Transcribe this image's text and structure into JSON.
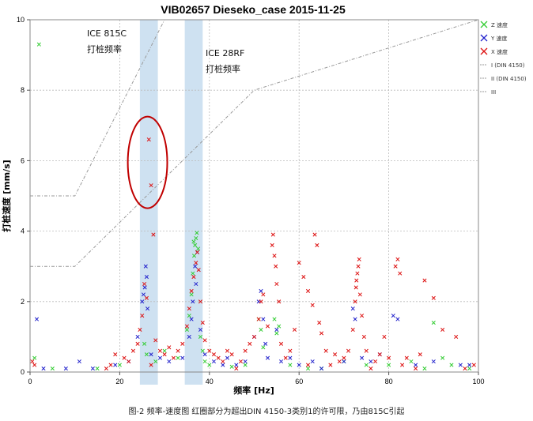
{
  "chart_data": {
    "type": "scatter",
    "title": "VIB02657 Dieseko_case 2015-11-25",
    "xlabel": "频率 [Hz]",
    "ylabel": "打桩速度 [mm/s]",
    "xlim": [
      0,
      100
    ],
    "ylim": [
      0,
      10
    ],
    "xticks": [
      "0",
      "20",
      "40",
      "60",
      "80",
      "100"
    ],
    "yticks": [
      "0",
      "2",
      "4",
      "6",
      "8",
      "10"
    ],
    "grid": true,
    "legend_position": "top-right",
    "colors": {
      "z": "#33cc33",
      "y": "#2222cc",
      "x": "#dd1111",
      "limit": "#999999",
      "band": "#c6dcef",
      "ellipse": "#c00000"
    },
    "series": [
      {
        "name": "Z 速度",
        "points": [
          [
            2,
            9.3
          ],
          [
            25.5,
            0.8
          ],
          [
            26,
            0.5
          ],
          [
            28,
            0.3
          ],
          [
            30,
            0.6
          ],
          [
            33,
            0.4
          ],
          [
            35,
            1.2
          ],
          [
            35.5,
            1.6
          ],
          [
            36,
            2.2
          ],
          [
            36.3,
            2.8
          ],
          [
            36.6,
            3.3
          ],
          [
            36.8,
            3.6
          ],
          [
            37,
            3.8
          ],
          [
            37.2,
            3.95
          ],
          [
            36.5,
            3.7
          ],
          [
            37.5,
            3.5
          ],
          [
            38,
            1.0
          ],
          [
            38.5,
            0.6
          ],
          [
            39,
            0.3
          ],
          [
            40,
            0.2
          ],
          [
            45,
            0.15
          ],
          [
            51,
            1.5
          ],
          [
            51.5,
            1.2
          ],
          [
            52,
            0.7
          ],
          [
            54.5,
            1.5
          ],
          [
            55,
            1.1
          ],
          [
            55.5,
            1.3
          ],
          [
            58,
            0.2
          ],
          [
            62,
            0.1
          ],
          [
            70,
            0.3
          ],
          [
            75,
            0.2
          ],
          [
            85,
            0.3
          ],
          [
            90,
            1.4
          ],
          [
            92,
            0.4
          ],
          [
            94,
            0.2
          ],
          [
            98,
            0.1
          ],
          [
            1,
            0.4
          ],
          [
            5,
            0.1
          ],
          [
            15,
            0.1
          ],
          [
            20,
            0.2
          ],
          [
            48,
            0.2
          ],
          [
            65,
            0.1
          ],
          [
            80,
            0.2
          ],
          [
            88,
            0.1
          ]
        ]
      },
      {
        "name": "Y 速度",
        "points": [
          [
            1.5,
            1.5
          ],
          [
            11,
            0.3
          ],
          [
            19,
            0.2
          ],
          [
            24,
            1.0
          ],
          [
            25,
            2.0
          ],
          [
            25.3,
            2.2
          ],
          [
            25.6,
            2.4
          ],
          [
            26,
            2.7
          ],
          [
            25.8,
            3.0
          ],
          [
            26.2,
            1.8
          ],
          [
            27,
            0.5
          ],
          [
            29,
            0.4
          ],
          [
            31,
            0.3
          ],
          [
            34,
            0.4
          ],
          [
            35.5,
            1.0
          ],
          [
            36,
            1.5
          ],
          [
            36.3,
            2.0
          ],
          [
            37,
            2.5
          ],
          [
            36.8,
            3.0
          ],
          [
            37.3,
            3.4
          ],
          [
            38,
            1.2
          ],
          [
            39,
            0.5
          ],
          [
            41,
            0.3
          ],
          [
            44,
            0.4
          ],
          [
            46,
            0.2
          ],
          [
            48,
            0.3
          ],
          [
            50,
            1.0
          ],
          [
            51,
            2.0
          ],
          [
            51.5,
            2.3
          ],
          [
            52,
            1.5
          ],
          [
            52.5,
            0.8
          ],
          [
            53,
            0.4
          ],
          [
            55,
            1.2
          ],
          [
            56,
            0.3
          ],
          [
            58,
            0.4
          ],
          [
            60,
            0.2
          ],
          [
            63,
            0.3
          ],
          [
            65,
            0.1
          ],
          [
            70,
            0.3
          ],
          [
            72,
            1.8
          ],
          [
            72.5,
            1.5
          ],
          [
            74,
            0.4
          ],
          [
            76,
            0.3
          ],
          [
            78,
            0.5
          ],
          [
            81,
            1.6
          ],
          [
            82,
            1.5
          ],
          [
            86,
            0.2
          ],
          [
            90,
            0.3
          ],
          [
            96,
            0.2
          ],
          [
            98,
            0.2
          ],
          [
            3,
            0.1
          ],
          [
            8,
            0.1
          ],
          [
            14,
            0.1
          ],
          [
            22,
            0.3
          ],
          [
            43,
            0.2
          ]
        ]
      },
      {
        "name": "X 速度",
        "points": [
          [
            0.5,
            0.3
          ],
          [
            1,
            0.2
          ],
          [
            17,
            0.1
          ],
          [
            18,
            0.2
          ],
          [
            21,
            0.4
          ],
          [
            23,
            0.6
          ],
          [
            24,
            0.8
          ],
          [
            24.5,
            1.2
          ],
          [
            25,
            1.6
          ],
          [
            25.5,
            2.5
          ],
          [
            26.5,
            6.6
          ],
          [
            27,
            5.3
          ],
          [
            27.5,
            3.9
          ],
          [
            26,
            2.1
          ],
          [
            28,
            0.9
          ],
          [
            29,
            0.6
          ],
          [
            30,
            0.5
          ],
          [
            31,
            0.7
          ],
          [
            32,
            0.4
          ],
          [
            33,
            0.6
          ],
          [
            34,
            0.8
          ],
          [
            35,
            1.3
          ],
          [
            35.5,
            1.8
          ],
          [
            36,
            2.3
          ],
          [
            36.5,
            2.7
          ],
          [
            37,
            3.1
          ],
          [
            37.3,
            3.4
          ],
          [
            37.6,
            2.9
          ],
          [
            38,
            2.0
          ],
          [
            38.5,
            1.4
          ],
          [
            39,
            0.9
          ],
          [
            40,
            0.6
          ],
          [
            41,
            0.5
          ],
          [
            42,
            0.4
          ],
          [
            43,
            0.3
          ],
          [
            45,
            0.5
          ],
          [
            47,
            0.3
          ],
          [
            48,
            0.6
          ],
          [
            49,
            0.8
          ],
          [
            50,
            1.0
          ],
          [
            51,
            1.5
          ],
          [
            51.5,
            2.0
          ],
          [
            52,
            2.2
          ],
          [
            53,
            1.3
          ],
          [
            54,
            3.6
          ],
          [
            54.2,
            3.9
          ],
          [
            54.5,
            3.3
          ],
          [
            54.8,
            3.0
          ],
          [
            55,
            2.5
          ],
          [
            55.5,
            2.0
          ],
          [
            56,
            0.8
          ],
          [
            57,
            0.4
          ],
          [
            58,
            0.6
          ],
          [
            59,
            1.2
          ],
          [
            60,
            3.1
          ],
          [
            61,
            2.7
          ],
          [
            62,
            2.3
          ],
          [
            63,
            1.9
          ],
          [
            63.5,
            3.9
          ],
          [
            64,
            3.6
          ],
          [
            64.5,
            1.4
          ],
          [
            65,
            1.1
          ],
          [
            66,
            0.6
          ],
          [
            68,
            0.5
          ],
          [
            70,
            0.4
          ],
          [
            71,
            0.6
          ],
          [
            72,
            1.2
          ],
          [
            72.5,
            2.0
          ],
          [
            72.7,
            2.4
          ],
          [
            73,
            2.8
          ],
          [
            73.2,
            3.0
          ],
          [
            73.4,
            3.2
          ],
          [
            72.8,
            2.6
          ],
          [
            73.6,
            2.2
          ],
          [
            74,
            1.6
          ],
          [
            74.5,
            1.0
          ],
          [
            75,
            0.6
          ],
          [
            77,
            0.3
          ],
          [
            78,
            0.5
          ],
          [
            79,
            1.0
          ],
          [
            80,
            0.4
          ],
          [
            81.5,
            3.0
          ],
          [
            82,
            3.2
          ],
          [
            82.5,
            2.8
          ],
          [
            84,
            0.4
          ],
          [
            87,
            0.5
          ],
          [
            88,
            2.6
          ],
          [
            90,
            2.1
          ],
          [
            92,
            1.2
          ],
          [
            95,
            1.0
          ],
          [
            97,
            0.1
          ],
          [
            99,
            0.2
          ],
          [
            19,
            0.5
          ],
          [
            22,
            0.3
          ],
          [
            27,
            0.2
          ],
          [
            44,
            0.6
          ],
          [
            46,
            0.1
          ],
          [
            62,
            0.2
          ],
          [
            67,
            0.2
          ],
          [
            69,
            0.3
          ],
          [
            76,
            0.1
          ],
          [
            83,
            0.2
          ],
          [
            86,
            0.1
          ]
        ]
      }
    ],
    "limit_lines": [
      {
        "name": "I (DIN 4150)",
        "points": [
          [
            0,
            3.0
          ],
          [
            10,
            3.0
          ],
          [
            50,
            8.0
          ],
          [
            100,
            10.0
          ]
        ]
      },
      {
        "name": "II (DIN 4150)",
        "points": [
          [
            0,
            5.0
          ],
          [
            10,
            5.0
          ],
          [
            30,
            10.0
          ]
        ]
      },
      {
        "name": "III",
        "points": []
      }
    ],
    "bands": [
      {
        "x0": 24.5,
        "x1": 28.5
      },
      {
        "x0": 34.5,
        "x1": 38.5
      }
    ],
    "annotations": [
      {
        "line1": "ICE 815C",
        "line2": "打桩频率",
        "x": 13,
        "y": 9.7
      },
      {
        "line1": "ICE 28RF",
        "line2": "打桩频率",
        "x": 39,
        "y": 9.05
      }
    ],
    "ellipse": {
      "cx": 26.2,
      "cy": 5.95,
      "rx": 4.4,
      "ry": 1.3
    }
  },
  "caption": "图-2 频率-速度图 红圈部分为超出DIN 4150-3类别1的许可限，乃由815C引起"
}
